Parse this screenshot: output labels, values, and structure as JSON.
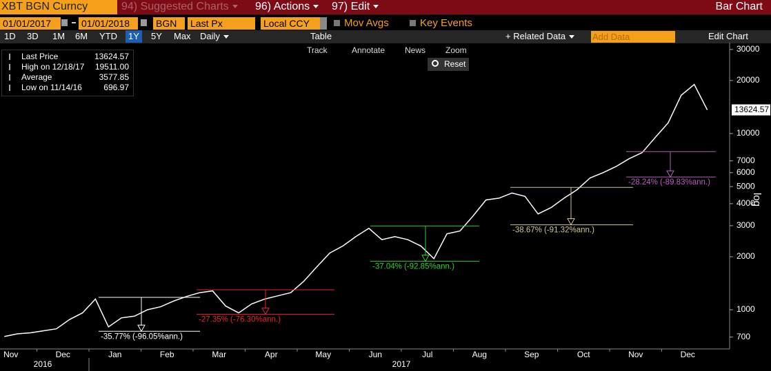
{
  "header": {
    "ticker": "XBT BGN Curncy",
    "menus": [
      "94) Suggested Charts",
      "96) Actions",
      "97) Edit"
    ],
    "chart_type_label": "Bar Chart"
  },
  "controls": {
    "start_date": "01/01/2017",
    "end_date": "01/01/2018",
    "source": "BGN",
    "field": "Last Px",
    "currency": "Local CCY",
    "toggles": [
      "Mov Avgs",
      "Key Events"
    ]
  },
  "toolbar": {
    "periods": [
      "1D",
      "3D",
      "1M",
      "6M",
      "YTD",
      "1Y",
      "5Y",
      "Max"
    ],
    "active_period": 5,
    "frequency": "Daily",
    "table": "Table",
    "related": "+ Related Data",
    "add_data": "Add Data",
    "edit": "Edit Chart"
  },
  "chart_tools": [
    "Track",
    "Annotate",
    "News",
    "Zoom"
  ],
  "reset": "Reset",
  "chart_data": {
    "type": "line",
    "log_scale": true,
    "categories": [
      "Nov",
      "Dec",
      "Jan",
      "Feb",
      "Mar",
      "Apr",
      "May",
      "Jun",
      "Jul",
      "Aug",
      "Sep",
      "Oct",
      "Nov",
      "Dec"
    ],
    "year_labels": [
      "2016",
      "2017"
    ],
    "series": [
      {
        "name": "Last Price",
        "color": "#ffffff",
        "values": [
          [
            null,
            705,
            730,
            740
          ],
          [
            760,
            780,
            880,
            960
          ],
          [
            1150,
            800,
            900,
            920
          ],
          [
            1000,
            1040,
            1120,
            1190
          ],
          [
            1250,
            1280,
            1050,
            960
          ],
          [
            1080,
            1150,
            1200,
            1250
          ],
          [
            1450,
            1750,
            2100,
            2300
          ],
          [
            2600,
            2900,
            2500,
            2600
          ],
          [
            2500,
            2300,
            1950,
            2700
          ],
          [
            2800,
            3400,
            4200,
            4300
          ],
          [
            4600,
            4400,
            3500,
            3800
          ],
          [
            4300,
            4800,
            5600,
            6000
          ],
          [
            6500,
            7200,
            7800,
            9500
          ],
          [
            11500,
            16500,
            19000,
            13624.57
          ]
        ]
      }
    ],
    "stats": [
      {
        "label": "High on 12/18/17",
        "value": "19511.00"
      },
      {
        "label": "Average",
        "value": "3577.85"
      },
      {
        "label": "Low on 11/14/16",
        "value": "696.97"
      }
    ],
    "ylim": [
      610,
      32790
    ],
    "yticks": [
      700,
      1000,
      2000,
      3000,
      4000,
      5000,
      6000,
      7000,
      10000,
      20000,
      30000
    ],
    "axis_label": "log",
    "annotations": [
      {
        "label": "-35.77% (-96.05%ann.)",
        "color": "#ffffff",
        "high": 1176,
        "low": 755
      },
      {
        "label": "-27.35% (-76.30%ann.)",
        "color": "#e8262a",
        "high": 1298,
        "low": 943
      },
      {
        "label": "-37.04% (-92.85%ann.)",
        "color": "#2ed12e",
        "high": 2990,
        "low": 1883
      },
      {
        "label": "-38.67% (-91.32%ann.)",
        "color": "#d2c890",
        "high": 4950,
        "low": 3036
      },
      {
        "label": "-28.24% (-89.83%ann.)",
        "color": "#b560bb",
        "high": 7900,
        "low": 5669
      }
    ]
  }
}
